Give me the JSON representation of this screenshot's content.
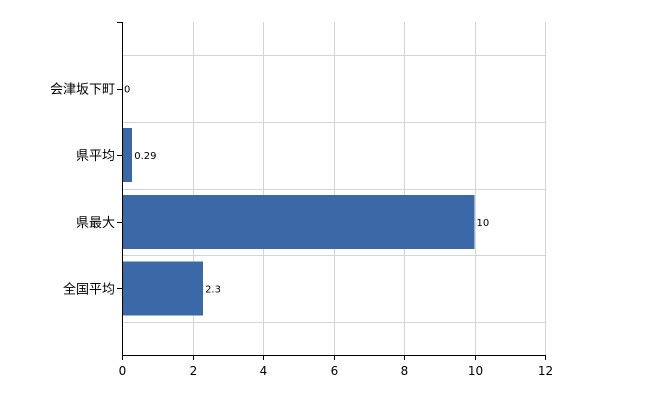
{
  "colors": {
    "bar": "#3b69a8",
    "grid": "#d4d4d4",
    "axis": "#000000",
    "background": "#ffffff"
  },
  "chart_data": {
    "type": "bar",
    "orientation": "horizontal",
    "title": "",
    "xlabel": "",
    "ylabel": "",
    "categories": [
      "会津坂下町",
      "県平均",
      "県最大",
      "全国平均"
    ],
    "values": [
      0,
      0.29,
      10,
      2.3
    ],
    "data_labels": [
      "0",
      "0.29",
      "10",
      "2.3"
    ],
    "xlim": [
      0,
      12
    ],
    "x_ticks": [
      0,
      2,
      4,
      6,
      8,
      10,
      12
    ],
    "x_tick_labels": [
      "0",
      "2",
      "4",
      "6",
      "8",
      "10",
      "12"
    ],
    "grid": true,
    "legend": "none"
  }
}
